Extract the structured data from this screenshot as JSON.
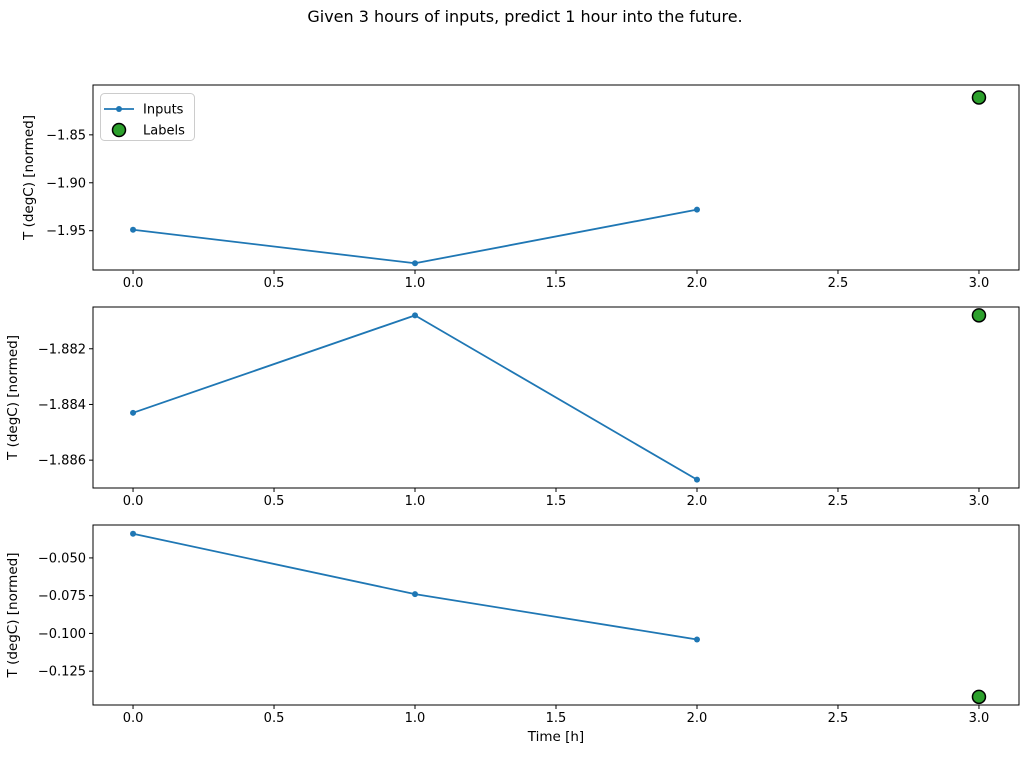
{
  "title": "Given 3 hours of inputs, predict 1 hour into the future.",
  "xlabel": "Time [h]",
  "legend": {
    "position": "upper-left",
    "items": [
      {
        "label": "Inputs",
        "type": "line-marker"
      },
      {
        "label": "Labels",
        "type": "scatter"
      }
    ]
  },
  "colors": {
    "inputs": "#1f77b4",
    "labels_fill": "#2ca02c",
    "labels_edge": "#000000",
    "spine": "#000000",
    "legend_border": "#cccccc"
  },
  "chart_data": [
    {
      "type": "line",
      "ylabel": "T (degC) [normed]",
      "x": [
        0,
        1,
        2
      ],
      "series": [
        {
          "name": "Inputs",
          "values": [
            -1.949,
            -1.984,
            -1.928
          ]
        }
      ],
      "label_point": {
        "name": "Labels",
        "x": 3,
        "y": -1.811
      },
      "x_ticks": [
        0,
        0.5,
        1,
        1.5,
        2,
        2.5,
        3
      ],
      "x_tick_decimals": 1,
      "y_ticks": [
        -1.85,
        -1.9,
        -1.95
      ],
      "y_tick_decimals": 2,
      "xlim": [
        -0.142,
        3.142
      ],
      "ylim": [
        -1.991,
        -1.798
      ],
      "grid": false,
      "show_legend": true
    },
    {
      "type": "line",
      "ylabel": "T (degC) [normed]",
      "x": [
        0,
        1,
        2
      ],
      "series": [
        {
          "name": "Inputs",
          "values": [
            -1.8843,
            -1.8808,
            -1.8867
          ]
        }
      ],
      "label_point": {
        "name": "Labels",
        "x": 3,
        "y": -1.8808
      },
      "x_ticks": [
        0,
        0.5,
        1,
        1.5,
        2,
        2.5,
        3
      ],
      "x_tick_decimals": 1,
      "y_ticks": [
        -1.882,
        -1.884,
        -1.886
      ],
      "y_tick_decimals": 3,
      "xlim": [
        -0.142,
        3.142
      ],
      "ylim": [
        -1.887,
        -1.8805
      ],
      "grid": false,
      "show_legend": false
    },
    {
      "type": "line",
      "ylabel": "T (degC) [normed]",
      "x": [
        0,
        1,
        2
      ],
      "series": [
        {
          "name": "Inputs",
          "values": [
            -0.034,
            -0.074,
            -0.104
          ]
        }
      ],
      "label_point": {
        "name": "Labels",
        "x": 3,
        "y": -0.142
      },
      "x_ticks": [
        0,
        0.5,
        1,
        1.5,
        2,
        2.5,
        3
      ],
      "x_tick_decimals": 1,
      "y_ticks": [
        -0.05,
        -0.075,
        -0.1,
        -0.125
      ],
      "y_tick_decimals": 3,
      "xlim": [
        -0.142,
        3.142
      ],
      "ylim": [
        -0.1474,
        -0.0282
      ],
      "grid": false,
      "show_legend": false
    }
  ]
}
